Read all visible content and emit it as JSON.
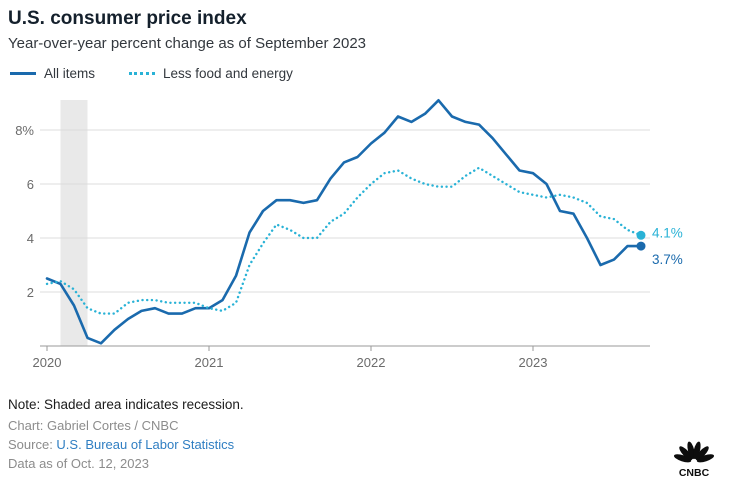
{
  "header": {
    "title": "U.S. consumer price index",
    "subtitle": "Year-over-year percent change as of September 2023"
  },
  "legend": [
    {
      "label": "All items",
      "color": "#1a6aad",
      "style": "solid"
    },
    {
      "label": "Less food and energy",
      "color": "#29b2d6",
      "style": "dotted"
    }
  ],
  "chart_data": {
    "type": "line",
    "title": "U.S. consumer price index",
    "x_unit": "month",
    "x_start": "2020-01",
    "x_end": "2023-09",
    "x_tick_labels": [
      "2020",
      "2021",
      "2022",
      "2023"
    ],
    "x_tick_indices": [
      0,
      12,
      24,
      36
    ],
    "y_ticks": [
      2,
      4,
      6,
      8
    ],
    "y_tick_labels": [
      "2",
      "4",
      "6",
      "8%"
    ],
    "ylim": [
      0,
      9
    ],
    "grid": true,
    "recession_band": {
      "start_index": 1,
      "end_index": 3,
      "color": "#e9e9e9"
    },
    "series": [
      {
        "name": "All items",
        "color": "#1a6aad",
        "style": "solid",
        "end_label": "3.7%",
        "label_dy": 18,
        "values": [
          2.5,
          2.3,
          1.5,
          0.3,
          0.1,
          0.6,
          1.0,
          1.3,
          1.4,
          1.2,
          1.2,
          1.4,
          1.4,
          1.7,
          2.6,
          4.2,
          5.0,
          5.4,
          5.4,
          5.3,
          5.4,
          6.2,
          6.8,
          7.0,
          7.5,
          7.9,
          8.5,
          8.3,
          8.6,
          9.1,
          8.5,
          8.3,
          8.2,
          7.7,
          7.1,
          6.5,
          6.4,
          6.0,
          5.0,
          4.9,
          4.0,
          3.0,
          3.2,
          3.7,
          3.7
        ]
      },
      {
        "name": "Less food and energy",
        "color": "#29b2d6",
        "style": "dotted",
        "end_label": "4.1%",
        "label_dy": 2,
        "values": [
          2.3,
          2.4,
          2.1,
          1.4,
          1.2,
          1.2,
          1.6,
          1.7,
          1.7,
          1.6,
          1.6,
          1.6,
          1.4,
          1.3,
          1.6,
          3.0,
          3.8,
          4.5,
          4.3,
          4.0,
          4.0,
          4.6,
          4.9,
          5.5,
          6.0,
          6.4,
          6.5,
          6.2,
          6.0,
          5.9,
          5.9,
          6.3,
          6.6,
          6.3,
          6.0,
          5.7,
          5.6,
          5.5,
          5.6,
          5.5,
          5.3,
          4.8,
          4.7,
          4.3,
          4.1
        ]
      }
    ]
  },
  "footer": {
    "note": "Note: Shaded area indicates recession.",
    "credit": "Chart: Gabriel Cortes / CNBC",
    "source_prefix": "Source: ",
    "source_link": "U.S. Bureau of Labor Statistics",
    "data_as_of": "Data as of Oct. 12, 2023",
    "logo": "CNBC"
  }
}
